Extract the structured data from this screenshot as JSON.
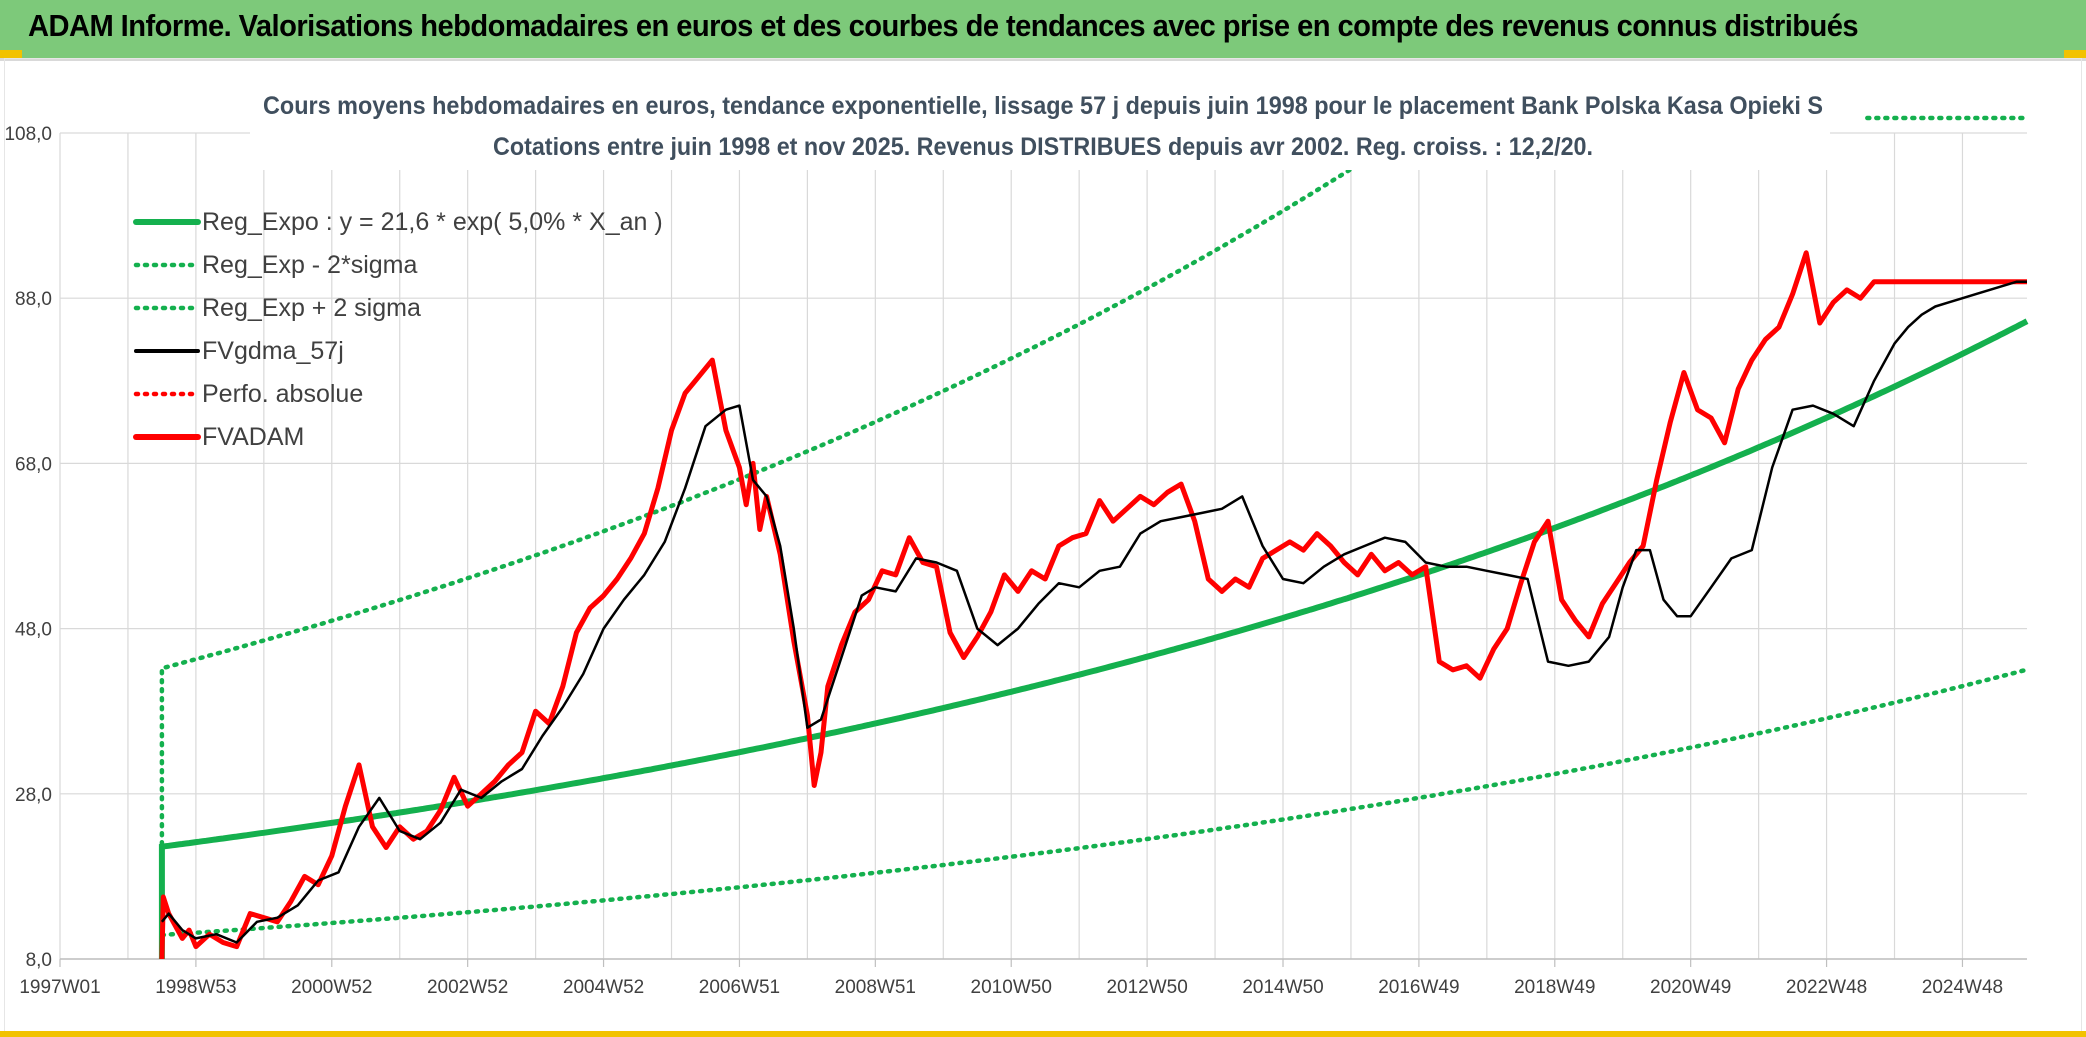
{
  "banner": {
    "title": "ADAM Informe. Valorisations hebdomadaires en euros et des courbes de tendances avec prise en compte des revenus connus distribués"
  },
  "colors": {
    "banner_bg": "#7dc97a",
    "accent_yellow": "#f2c200",
    "reg_green": "#14b04e",
    "black": "#000000",
    "red": "#ff0000",
    "grid": "#d9d9d9",
    "axis_text": "#404040",
    "title_text": "#404f5e"
  },
  "chart_data": {
    "type": "line",
    "title": "Cours moyens hebdomadaires en euros, tendance exponentielle, lissage 57 j depuis juin 1998 pour le placement Bank Polska Kasa Opieki S",
    "subtitle": "Cotations entre juin 1998 et nov 2025. Revenus DISTRIBUES depuis avr 2002. Reg. croiss. : 12,2/20.",
    "xlabel": "",
    "ylabel": "",
    "x_range": [
      1997.0,
      2025.95
    ],
    "ylim": [
      8.0,
      108.0
    ],
    "yticks": [
      "8,0",
      "28,0",
      "48,0",
      "68,0",
      "88,0",
      "108,0"
    ],
    "ytick_values": [
      8,
      28,
      48,
      68,
      88,
      108
    ],
    "xtick_labels": [
      "1997W01",
      "1998W53",
      "2000W52",
      "2002W52",
      "2004W52",
      "2006W51",
      "2008W51",
      "2010W50",
      "2012W50",
      "2014W50",
      "2016W49",
      "2018W49",
      "2020W49",
      "2022W48",
      "2024W48"
    ],
    "xtick_years": [
      1997.0,
      1999.0,
      2001.0,
      2003.0,
      2005.0,
      2007.0,
      2009.0,
      2011.0,
      2013.0,
      2015.0,
      2017.0,
      2019.0,
      2021.0,
      2023.0,
      2025.0
    ],
    "grid": true,
    "legend_position": "top-left",
    "legend": [
      {
        "name": "Reg_Expo : y = 21,6 * exp( 5,0% *  X_an )",
        "style": "solid-thick",
        "color": "#14b04e"
      },
      {
        "name": "Reg_Exp - 2*sigma",
        "style": "dotted",
        "color": "#14b04e"
      },
      {
        "name": "Reg_Exp + 2 sigma",
        "style": "dotted",
        "color": "#14b04e"
      },
      {
        "name": "FVgdma_57j",
        "style": "solid",
        "color": "#000000"
      },
      {
        "name": "Perfo. absolue",
        "style": "dotted",
        "color": "#ff0000"
      },
      {
        "name": "FVADAM",
        "style": "solid-thick",
        "color": "#ff0000"
      }
    ],
    "regression": {
      "start_year": 1998.5,
      "a": 21.6,
      "rate": 0.05,
      "lower_start": 11.0,
      "upper_start": 43.3,
      "band_ratio_lower": 0.505,
      "band_ratio_upper": 2.0
    },
    "series": [
      {
        "name": "FVgdma_57j",
        "x": [
          1998.5,
          1998.6,
          1998.8,
          1999.0,
          1999.3,
          1999.6,
          1999.9,
          2000.2,
          2000.5,
          2000.8,
          2001.1,
          2001.4,
          2001.7,
          2002.0,
          2002.3,
          2002.6,
          2002.9,
          2003.2,
          2003.5,
          2003.8,
          2004.1,
          2004.4,
          2004.7,
          2005.0,
          2005.3,
          2005.6,
          2005.9,
          2006.2,
          2006.5,
          2006.8,
          2007.0,
          2007.2,
          2007.4,
          2007.6,
          2007.8,
          2008.0,
          2008.2,
          2008.4,
          2008.6,
          2008.8,
          2009.0,
          2009.3,
          2009.6,
          2009.9,
          2010.2,
          2010.5,
          2010.8,
          2011.1,
          2011.4,
          2011.7,
          2012.0,
          2012.3,
          2012.6,
          2012.9,
          2013.2,
          2013.5,
          2013.8,
          2014.1,
          2014.4,
          2014.7,
          2015.0,
          2015.3,
          2015.6,
          2015.9,
          2016.2,
          2016.5,
          2016.8,
          2017.1,
          2017.4,
          2017.7,
          2018.0,
          2018.3,
          2018.6,
          2018.9,
          2019.2,
          2019.5,
          2019.8,
          2020.0,
          2020.2,
          2020.4,
          2020.6,
          2020.8,
          2021.0,
          2021.3,
          2021.6,
          2021.9,
          2022.2,
          2022.5,
          2022.8,
          2023.1,
          2023.4,
          2023.7,
          2024.0,
          2024.2,
          2024.4,
          2024.6,
          2024.8,
          2025.0,
          2025.2,
          2025.4,
          2025.6,
          2025.8,
          2025.95
        ],
        "values": [
          12.5,
          13.5,
          11.5,
          10.5,
          11.0,
          10.0,
          12.5,
          13.0,
          14.5,
          17.5,
          18.5,
          24.0,
          27.5,
          23.5,
          22.5,
          24.5,
          28.5,
          27.5,
          29.5,
          31.0,
          35.0,
          38.5,
          42.5,
          48.0,
          51.5,
          54.5,
          58.5,
          65.0,
          72.5,
          74.5,
          75.0,
          66.0,
          64.0,
          58.0,
          48.0,
          36.0,
          37.0,
          42.0,
          47.0,
          52.0,
          53.0,
          52.5,
          56.5,
          56.0,
          55.0,
          48.0,
          46.0,
          48.0,
          51.0,
          53.5,
          53.0,
          55.0,
          55.5,
          59.5,
          61.0,
          61.5,
          62.0,
          62.5,
          64.0,
          58.0,
          54.0,
          53.5,
          55.5,
          57.0,
          58.0,
          59.0,
          58.5,
          56.0,
          55.5,
          55.5,
          55.0,
          54.5,
          54.0,
          44.0,
          43.5,
          44.0,
          47.0,
          53.0,
          57.5,
          57.5,
          51.5,
          49.5,
          49.5,
          53.0,
          56.5,
          57.5,
          67.5,
          74.5,
          75.0,
          74.0,
          72.5,
          78.0,
          82.5,
          84.5,
          86.0,
          87.0,
          87.5,
          88.0,
          88.5,
          89.0,
          89.5,
          90.0,
          90.0
        ]
      },
      {
        "name": "FVADAM",
        "x": [
          1998.5,
          1998.52,
          1998.6,
          1998.7,
          1998.8,
          1998.9,
          1999.0,
          1999.2,
          1999.4,
          1999.6,
          1999.8,
          2000.0,
          2000.2,
          2000.4,
          2000.6,
          2000.8,
          2001.0,
          2001.2,
          2001.4,
          2001.6,
          2001.8,
          2002.0,
          2002.2,
          2002.4,
          2002.6,
          2002.8,
          2003.0,
          2003.2,
          2003.4,
          2003.6,
          2003.8,
          2004.0,
          2004.2,
          2004.4,
          2004.6,
          2004.8,
          2005.0,
          2005.2,
          2005.4,
          2005.6,
          2005.8,
          2006.0,
          2006.2,
          2006.4,
          2006.6,
          2006.8,
          2007.0,
          2007.1,
          2007.2,
          2007.3,
          2007.4,
          2007.6,
          2007.8,
          2008.0,
          2008.1,
          2008.2,
          2008.3,
          2008.5,
          2008.7,
          2008.9,
          2009.1,
          2009.3,
          2009.5,
          2009.7,
          2009.9,
          2010.1,
          2010.3,
          2010.5,
          2010.7,
          2010.9,
          2011.1,
          2011.3,
          2011.5,
          2011.7,
          2011.9,
          2012.1,
          2012.3,
          2012.5,
          2012.7,
          2012.9,
          2013.1,
          2013.3,
          2013.5,
          2013.7,
          2013.9,
          2014.1,
          2014.3,
          2014.5,
          2014.7,
          2014.9,
          2015.1,
          2015.3,
          2015.5,
          2015.7,
          2015.9,
          2016.1,
          2016.3,
          2016.5,
          2016.7,
          2016.9,
          2017.1,
          2017.3,
          2017.5,
          2017.7,
          2017.9,
          2018.1,
          2018.3,
          2018.5,
          2018.7,
          2018.9,
          2019.1,
          2019.3,
          2019.5,
          2019.7,
          2019.9,
          2020.1,
          2020.3,
          2020.5,
          2020.7,
          2020.9,
          2021.1,
          2021.3,
          2021.5,
          2021.7,
          2021.9,
          2022.1,
          2022.3,
          2022.5,
          2022.7,
          2022.9,
          2023.1,
          2023.3,
          2023.5,
          2023.7,
          2023.9,
          2024.1,
          2024.3,
          2024.5,
          2024.7,
          2024.9,
          2025.1,
          2025.3,
          2025.5,
          2025.6,
          2025.7,
          2025.8,
          2025.95
        ],
        "values": [
          8.0,
          15.5,
          13.5,
          12.0,
          10.5,
          11.5,
          9.5,
          11.0,
          10.0,
          9.5,
          13.5,
          13.0,
          12.5,
          15.0,
          18.0,
          17.0,
          20.5,
          26.5,
          31.5,
          24.0,
          21.5,
          24.0,
          22.5,
          23.5,
          26.0,
          30.0,
          26.5,
          28.0,
          29.5,
          31.5,
          33.0,
          38.0,
          36.5,
          41.0,
          47.5,
          50.5,
          52.0,
          54.0,
          56.5,
          59.5,
          65.0,
          72.0,
          76.5,
          78.5,
          80.5,
          72.0,
          67.5,
          63.0,
          68.0,
          60.0,
          64.0,
          57.0,
          46.5,
          37.5,
          29.0,
          33.0,
          41.0,
          46.0,
          50.0,
          51.5,
          55.0,
          54.5,
          59.0,
          56.0,
          55.5,
          47.5,
          44.5,
          47.0,
          50.0,
          54.5,
          52.5,
          55.0,
          54.0,
          58.0,
          59.0,
          59.5,
          63.5,
          61.0,
          62.5,
          64.0,
          63.0,
          64.5,
          65.5,
          61.0,
          54.0,
          52.5,
          54.0,
          53.0,
          56.5,
          57.5,
          58.5,
          57.5,
          59.5,
          58.0,
          56.0,
          54.5,
          57.0,
          55.0,
          56.0,
          54.5,
          55.5,
          44.0,
          43.0,
          43.5,
          42.0,
          45.5,
          48.0,
          53.5,
          58.5,
          61.0,
          51.5,
          49.0,
          47.0,
          51.0,
          53.5,
          56.0,
          58.0,
          66.0,
          73.0,
          79.0,
          74.5,
          73.5,
          70.5,
          77.0,
          80.5,
          83.0,
          84.5,
          88.5,
          93.5,
          85.0,
          87.5,
          89.0,
          88.0,
          90.0,
          90.0,
          90.0,
          90.0,
          90.0,
          90.0,
          90.0,
          90.0,
          90.0,
          90.0,
          90.0,
          90.0,
          90.0,
          90.0
        ]
      }
    ]
  }
}
